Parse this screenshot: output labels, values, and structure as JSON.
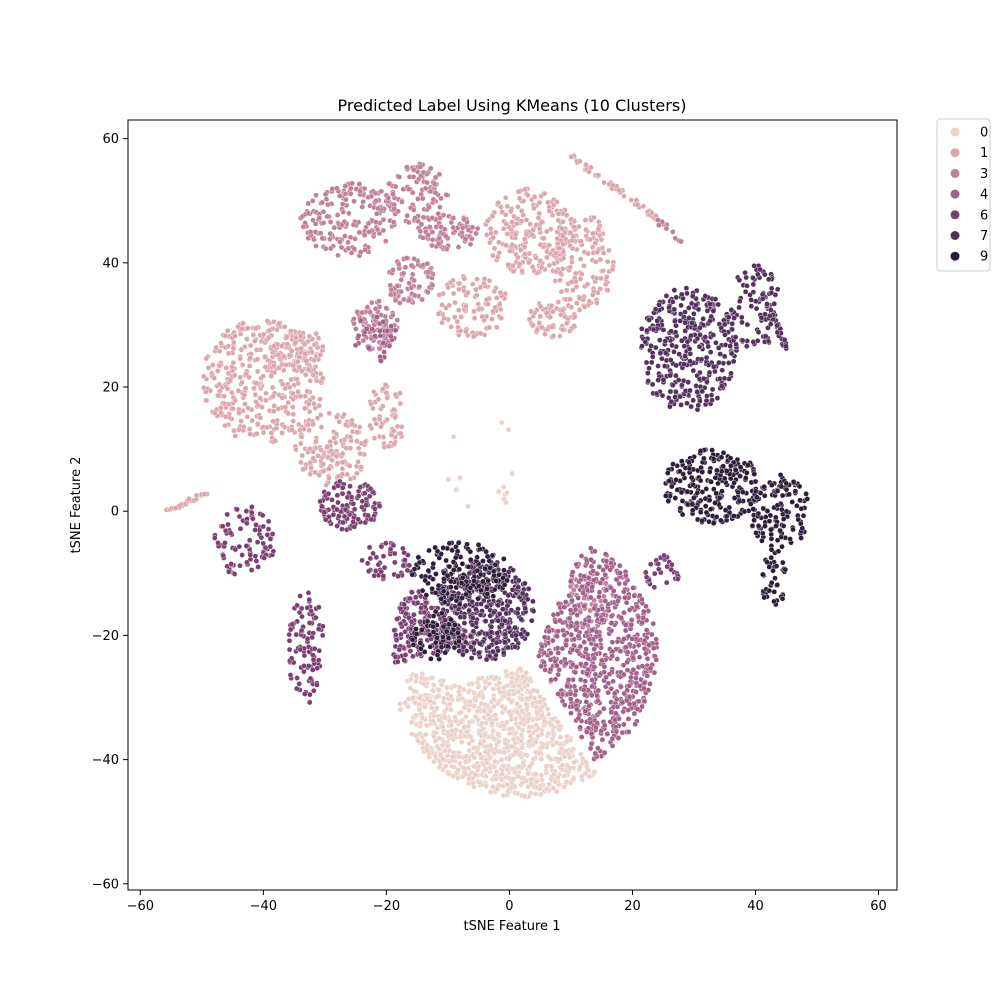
{
  "chart_data": {
    "type": "scatter",
    "title": "Predicted Label Using KMeans (10 Clusters)",
    "xlabel": "tSNE Feature 1",
    "ylabel": "tSNE Feature 2",
    "xlim": [
      -62,
      63
    ],
    "ylim": [
      -61,
      63
    ],
    "xticks": [
      -60,
      -40,
      -20,
      0,
      20,
      40,
      60
    ],
    "yticks": [
      -60,
      -40,
      -20,
      0,
      20,
      40,
      60
    ],
    "xtick_labels": [
      "−60",
      "−40",
      "−20",
      "0",
      "20",
      "40",
      "60"
    ],
    "ytick_labels": [
      "−60",
      "−40",
      "−20",
      "0",
      "20",
      "40",
      "60"
    ],
    "grid": false,
    "legend_placement": "outside-top-right",
    "series": [
      {
        "name": "0",
        "color": "#ebd1c8",
        "approx_regions": [
          {
            "shape": "wedge",
            "center": [
              2,
              -25
            ],
            "r": 21,
            "start_deg": 195,
            "end_deg": 305,
            "n": 900
          },
          {
            "shape": "ellipse",
            "center": [
              -14,
              -29
            ],
            "rx": 4,
            "ry": 3,
            "n": 40
          },
          {
            "shape": "ellipse",
            "center": [
              -5,
              8
            ],
            "rx": 6,
            "ry": 10,
            "n": 14
          }
        ]
      },
      {
        "name": "1",
        "color": "#dba7ad",
        "approx_regions": [
          {
            "shape": "ellipse",
            "center": [
              -40,
              21
            ],
            "rx": 10,
            "ry": 10,
            "n": 380
          },
          {
            "shape": "ellipse",
            "center": [
              -29,
              10
            ],
            "rx": 6,
            "ry": 6,
            "n": 150
          },
          {
            "shape": "ellipse",
            "center": [
              -35,
              26
            ],
            "rx": 5,
            "ry": 4,
            "n": 70
          },
          {
            "shape": "ellipse",
            "center": [
              3,
              45
            ],
            "rx": 7,
            "ry": 7,
            "n": 200
          },
          {
            "shape": "ellipse",
            "center": [
              12,
              40
            ],
            "rx": 5,
            "ry": 8,
            "n": 150
          },
          {
            "shape": "ellipse",
            "center": [
              -6,
              33
            ],
            "rx": 6,
            "ry": 5,
            "n": 100
          },
          {
            "shape": "ellipse",
            "center": [
              7,
              31
            ],
            "rx": 4,
            "ry": 3,
            "n": 70
          },
          {
            "shape": "ellipse",
            "center": [
              -20,
              15
            ],
            "rx": 3,
            "ry": 6,
            "n": 60
          },
          {
            "shape": "curve",
            "from": [
              -56,
              0
            ],
            "to": [
              -49,
              3
            ],
            "n": 25
          },
          {
            "shape": "curve",
            "from": [
              9,
              58
            ],
            "to": [
              24,
              47
            ],
            "n": 45
          }
        ]
      },
      {
        "name": "3",
        "color": "#c17f99",
        "approx_regions": [
          {
            "shape": "ellipse",
            "center": [
              -26,
              47
            ],
            "rx": 8,
            "ry": 6,
            "n": 180
          },
          {
            "shape": "ellipse",
            "center": [
              -15,
              51
            ],
            "rx": 5,
            "ry": 5,
            "n": 100
          },
          {
            "shape": "ellipse",
            "center": [
              -10,
              45
            ],
            "rx": 5,
            "ry": 3,
            "n": 80
          },
          {
            "shape": "ellipse",
            "center": [
              -16,
              37
            ],
            "rx": 4,
            "ry": 4,
            "n": 80
          },
          {
            "shape": "ellipse",
            "center": [
              -22,
              30
            ],
            "rx": 4,
            "ry": 4,
            "n": 80
          },
          {
            "shape": "ellipse",
            "center": [
              13,
              -14
            ],
            "rx": 4,
            "ry": 5,
            "n": 60
          },
          {
            "shape": "curve",
            "from": [
              24,
              47
            ],
            "to": [
              28,
              43
            ],
            "n": 15
          }
        ]
      },
      {
        "name": "4",
        "color": "#a3608a",
        "approx_regions": [
          {
            "shape": "wedge",
            "center": [
              4,
              -23
            ],
            "r": 20,
            "start_deg": -60,
            "end_deg": 65,
            "n": 700
          },
          {
            "shape": "ellipse",
            "center": [
              -22,
              28
            ],
            "rx": 4,
            "ry": 4,
            "n": 40
          }
        ]
      },
      {
        "name": "6",
        "color": "#7a3f73",
        "approx_regions": [
          {
            "shape": "ellipse",
            "center": [
              -26,
              1
            ],
            "rx": 5,
            "ry": 4,
            "n": 120
          },
          {
            "shape": "ellipse",
            "center": [
              -43,
              -5
            ],
            "rx": 5,
            "ry": 6,
            "n": 90
          },
          {
            "shape": "ellipse",
            "center": [
              -33,
              -22
            ],
            "rx": 3,
            "ry": 9,
            "n": 100
          },
          {
            "shape": "wedge",
            "center": [
              -5,
              -21
            ],
            "r": 14,
            "start_deg": 140,
            "end_deg": 195,
            "n": 200
          },
          {
            "shape": "ellipse",
            "center": [
              -20,
              -8
            ],
            "rx": 4,
            "ry": 3,
            "n": 50
          },
          {
            "shape": "ellipse",
            "center": [
              25,
              -10
            ],
            "rx": 3,
            "ry": 3,
            "n": 30
          }
        ]
      },
      {
        "name": "7",
        "color": "#55305e",
        "approx_regions": [
          {
            "shape": "ellipse",
            "center": [
              -4,
              -16
            ],
            "rx": 8,
            "ry": 8,
            "n": 420
          },
          {
            "shape": "ellipse",
            "center": [
              29,
              26
            ],
            "rx": 8,
            "ry": 10,
            "n": 360
          },
          {
            "shape": "ellipse",
            "center": [
              40,
              33
            ],
            "rx": 4,
            "ry": 7,
            "n": 80
          },
          {
            "shape": "curve",
            "from": [
              41,
              35
            ],
            "to": [
              45,
              26
            ],
            "n": 40
          }
        ]
      },
      {
        "name": "9",
        "color": "#2e1d3a",
        "approx_regions": [
          {
            "shape": "ellipse",
            "center": [
              33,
              4
            ],
            "rx": 8,
            "ry": 6,
            "n": 250
          },
          {
            "shape": "ellipse",
            "center": [
              44,
              0
            ],
            "rx": 5,
            "ry": 6,
            "n": 120
          },
          {
            "shape": "ellipse",
            "center": [
              43,
              -11
            ],
            "rx": 2,
            "ry": 5,
            "n": 40
          },
          {
            "shape": "ellipse",
            "center": [
              -8,
              -10
            ],
            "rx": 8,
            "ry": 5,
            "n": 180
          },
          {
            "shape": "ellipse",
            "center": [
              -12,
              -20
            ],
            "rx": 4,
            "ry": 4,
            "n": 60
          }
        ]
      }
    ]
  }
}
